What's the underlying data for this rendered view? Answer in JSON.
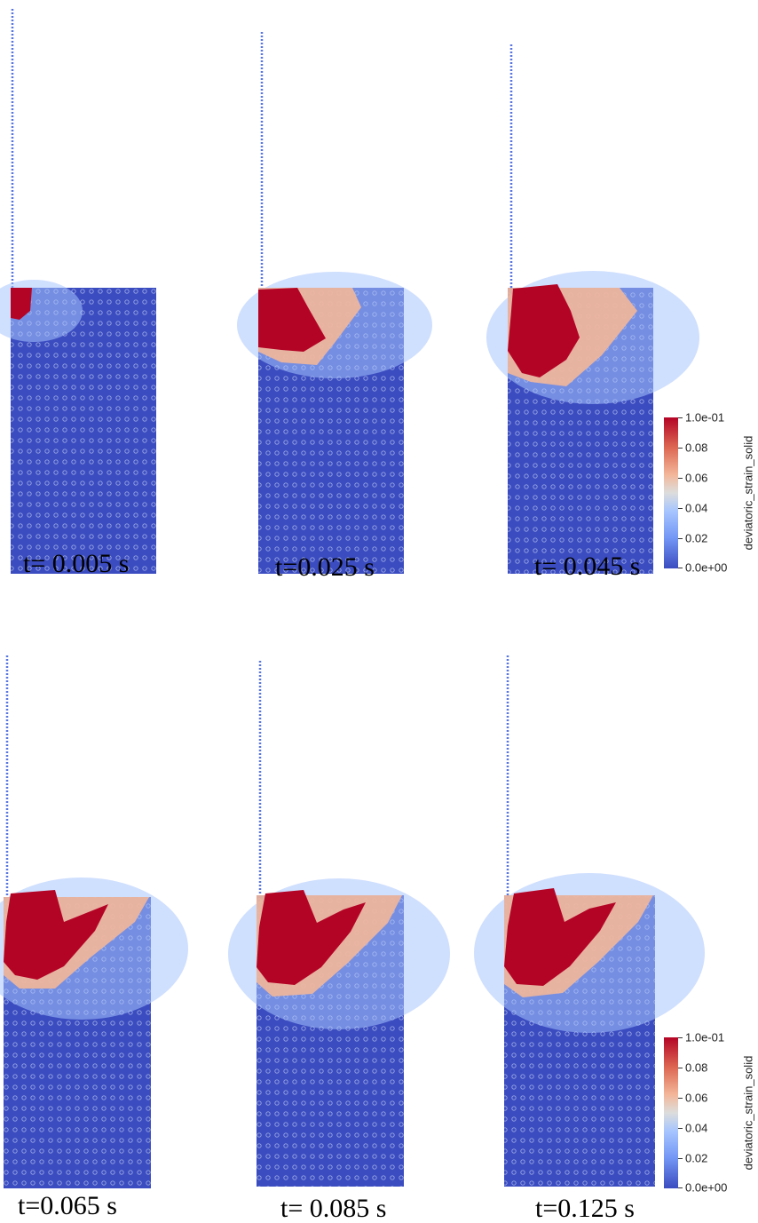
{
  "panels": [
    {
      "caption": "t= 0.005 s"
    },
    {
      "caption": "t=0.025 s"
    },
    {
      "caption": "t= 0.045 s"
    },
    {
      "caption": "t=0.065 s"
    },
    {
      "caption": "t= 0.085 s"
    },
    {
      "caption": "t=0.125 s"
    }
  ],
  "colorbar": {
    "title": "deviatoric_strain_solid",
    "max_label": "1.0e-01",
    "labels": [
      "0.08",
      "0.06",
      "0.04",
      "0.02"
    ],
    "min_label": "0.0e+00"
  },
  "colors": {
    "low": "#3b4cc0",
    "mid": "#dcdddd",
    "high": "#b40426",
    "light_blue": "#a7c5fe",
    "salmon": "#f3b79a"
  }
}
